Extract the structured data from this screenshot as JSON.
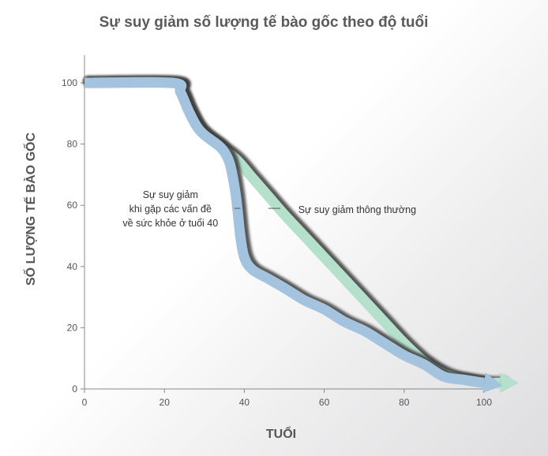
{
  "chart_data": {
    "type": "line",
    "title": "Sự suy giảm số lượng tế bào gốc theo độ tuổi",
    "xlabel": "TUỔI",
    "ylabel": "SỐ LƯỢNG TẾ BÀO GỐC",
    "xlim": [
      0,
      100
    ],
    "ylim": [
      0,
      100
    ],
    "xticks": [
      0,
      20,
      40,
      60,
      80,
      100
    ],
    "yticks": [
      0,
      20,
      40,
      60,
      80,
      100
    ],
    "grid": false,
    "series": [
      {
        "name": "Sự suy giảm thông thường",
        "color": "#b5e0cc",
        "x": [
          0,
          22,
          24,
          26,
          28,
          30,
          34,
          38,
          42,
          46,
          50,
          55,
          60,
          65,
          70,
          75,
          80,
          85,
          90,
          95,
          100,
          104
        ],
        "y": [
          100,
          100,
          97,
          91,
          86,
          83,
          79,
          75,
          69,
          63,
          57,
          50,
          43,
          36,
          29,
          22,
          15,
          9,
          5,
          3,
          2,
          2
        ]
      },
      {
        "name": "Sự suy giảm khi gặp các vấn đề về sức khỏe ở tuổi 40",
        "color": "#a3c3de",
        "x": [
          0,
          22,
          24,
          26,
          28,
          30,
          34,
          36,
          37,
          38,
          39,
          40,
          42,
          46,
          50,
          55,
          60,
          65,
          70,
          75,
          80,
          85,
          90,
          95,
          100
        ],
        "y": [
          100,
          100,
          97,
          91,
          86,
          83,
          79,
          75,
          70,
          62,
          50,
          43,
          39,
          36,
          33,
          29,
          26,
          22,
          19,
          15,
          11,
          8,
          4,
          3,
          2
        ]
      }
    ],
    "annotations": {
      "normal": "Sự suy giảm thông thường",
      "problem_lines": [
        "Sự suy giảm",
        "khi gặp các vấn đề",
        "về sức khỏe ở tuổi 40"
      ]
    }
  }
}
